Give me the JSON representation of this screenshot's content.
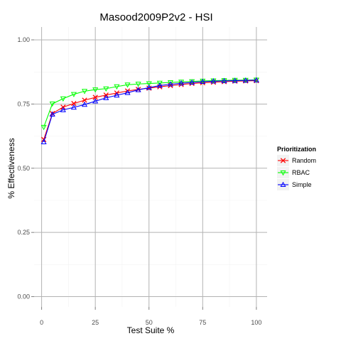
{
  "chart_data": {
    "type": "line",
    "title": "Masood2009P2v2 - HSI",
    "xlabel": "Test Suite %",
    "ylabel": "% Effectiveness",
    "xlim": [
      -3.5,
      105
    ],
    "ylim": [
      -0.04,
      1.05
    ],
    "x_ticks": [
      {
        "value": 0,
        "label": "0"
      },
      {
        "value": 25,
        "label": "25"
      },
      {
        "value": 50,
        "label": "50"
      },
      {
        "value": 75,
        "label": "75"
      },
      {
        "value": 100,
        "label": "100"
      }
    ],
    "y_ticks": [
      {
        "value": 0,
        "label": "0.00"
      },
      {
        "value": 0.25,
        "label": "0.25"
      },
      {
        "value": 0.5,
        "label": "0.50"
      },
      {
        "value": 0.75,
        "label": "0.75"
      },
      {
        "value": 1.0,
        "label": "1.00"
      }
    ],
    "grid": true,
    "legend": {
      "title": "Prioritization",
      "position": "right"
    },
    "x": [
      1,
      5,
      10,
      15,
      20,
      25,
      30,
      35,
      40,
      45,
      50,
      55,
      60,
      65,
      70,
      75,
      80,
      85,
      90,
      95,
      100
    ],
    "series": [
      {
        "name": "Random",
        "color": "#ff0000",
        "marker": "cross",
        "values": [
          0.612,
          0.713,
          0.738,
          0.752,
          0.765,
          0.776,
          0.785,
          0.793,
          0.801,
          0.807,
          0.812,
          0.817,
          0.822,
          0.826,
          0.83,
          0.833,
          0.835,
          0.837,
          0.839,
          0.84,
          0.841
        ]
      },
      {
        "name": "RBAC",
        "color": "#00ff00",
        "marker": "triangle-down",
        "values": [
          0.66,
          0.751,
          0.771,
          0.788,
          0.8,
          0.806,
          0.81,
          0.818,
          0.825,
          0.828,
          0.83,
          0.832,
          0.834,
          0.836,
          0.838,
          0.84,
          0.841,
          0.842,
          0.843,
          0.843,
          0.844
        ]
      },
      {
        "name": "Simple",
        "color": "#0000ff",
        "marker": "triangle-up",
        "values": [
          0.602,
          0.71,
          0.727,
          0.737,
          0.748,
          0.761,
          0.774,
          0.784,
          0.794,
          0.805,
          0.814,
          0.822,
          0.827,
          0.831,
          0.834,
          0.837,
          0.839,
          0.84,
          0.841,
          0.842,
          0.843
        ]
      }
    ]
  }
}
